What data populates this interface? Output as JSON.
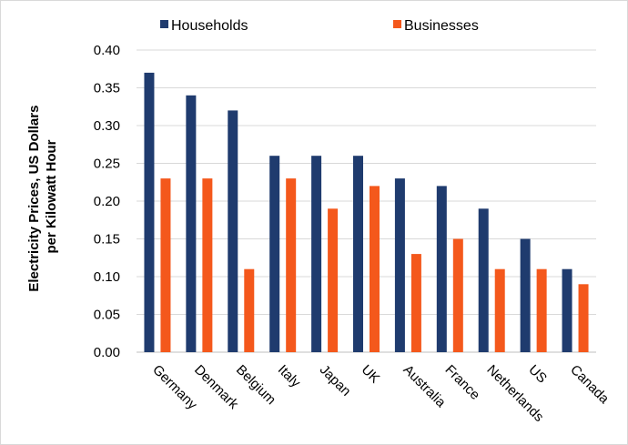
{
  "chart_data": {
    "type": "bar",
    "title": "",
    "xlabel": "",
    "ylabel_line1": "Electricity Prices, US Dollars",
    "ylabel_line2": "per Kilowatt Hour",
    "ylim": [
      0,
      0.4
    ],
    "yticks": [
      "0.00",
      "0.05",
      "0.10",
      "0.15",
      "0.20",
      "0.25",
      "0.30",
      "0.35",
      "0.40"
    ],
    "grid": true,
    "legend_position": "top",
    "categories": [
      "Germany",
      "Denmark",
      "Belgium",
      "Italy",
      "Japan",
      "UK",
      "Australia",
      "France",
      "Netherlands",
      "US",
      "Canada"
    ],
    "series": [
      {
        "name": "Households",
        "color": "#1f3b6e",
        "values": [
          0.37,
          0.34,
          0.32,
          0.26,
          0.26,
          0.26,
          0.23,
          0.22,
          0.19,
          0.15,
          0.11
        ]
      },
      {
        "name": "Businesses",
        "color": "#f4581c",
        "values": [
          0.23,
          0.23,
          0.11,
          0.23,
          0.19,
          0.22,
          0.13,
          0.15,
          0.11,
          0.11,
          0.09
        ]
      }
    ]
  }
}
